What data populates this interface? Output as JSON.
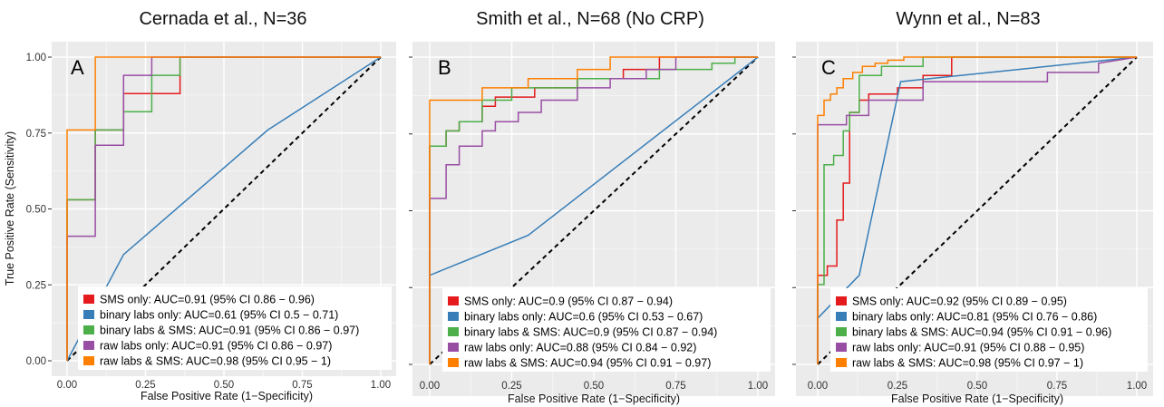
{
  "figure": {
    "y_axis_label": "True Positive Rate (Sensitivity)"
  },
  "chart_data": [
    {
      "type": "line",
      "title": "Cernada et al., N=36",
      "panel_label": "A",
      "xlabel": "False Positive Rate (1−Specificity)",
      "ylabel": "True Positive Rate (Sensitivity)",
      "xlim": [
        0,
        1
      ],
      "ylim": [
        0,
        1
      ],
      "x_ticks": [
        "0.00",
        "0.25",
        "0.50",
        "0.75",
        "1.00"
      ],
      "y_ticks": [
        "0.00",
        "0.25",
        "0.50",
        "0.75",
        "1.00"
      ],
      "grid": true,
      "legend_position": "bottom-right",
      "reference_line": [
        [
          0,
          0
        ],
        [
          1,
          1
        ]
      ],
      "series": [
        {
          "name": "SMS only: AUC=0.91 (95% CI 0.86 − 0.96)",
          "color": "#e41a1c",
          "x": [
            0,
            0,
            0.09,
            0.09,
            0.18,
            0.18,
            0.27,
            0.27,
            0.36,
            0.36,
            1
          ],
          "y": [
            0,
            0.53,
            0.53,
            0.76,
            0.76,
            0.88,
            0.88,
            0.88,
            0.88,
            1,
            1
          ]
        },
        {
          "name": "binary labs only: AUC=0.61 (95% CI 0.5 − 0.71)",
          "color": "#377eb8",
          "x": [
            0,
            0.18,
            0.64,
            1
          ],
          "y": [
            0,
            0.35,
            0.76,
            1
          ]
        },
        {
          "name": "binary labs & SMS: AUC=0.91 (95% CI 0.86 − 0.97)",
          "color": "#4daf4a",
          "x": [
            0,
            0,
            0.09,
            0.09,
            0.18,
            0.18,
            0.27,
            0.27,
            0.36,
            0.36,
            1
          ],
          "y": [
            0,
            0.53,
            0.53,
            0.76,
            0.76,
            0.82,
            0.82,
            0.94,
            0.94,
            1,
            1
          ]
        },
        {
          "name": "raw labs only: AUC=0.91 (95% CI 0.86 − 0.97)",
          "color": "#984ea3",
          "x": [
            0,
            0,
            0.09,
            0.09,
            0.18,
            0.18,
            0.27,
            0.27,
            1
          ],
          "y": [
            0,
            0.41,
            0.41,
            0.71,
            0.71,
            0.94,
            0.94,
            1,
            1
          ]
        },
        {
          "name": "raw labs & SMS: AUC=0.98 (95% CI 0.95 − 1)",
          "color": "#ff7f00",
          "x": [
            0,
            0,
            0.09,
            0.09,
            1
          ],
          "y": [
            0,
            0.76,
            0.76,
            1,
            1
          ]
        }
      ]
    },
    {
      "type": "line",
      "title": "Smith et al., N=68 (No CRP)",
      "panel_label": "B",
      "xlabel": "False Positive Rate (1−Specificity)",
      "ylabel": "",
      "xlim": [
        0,
        1
      ],
      "ylim": [
        0,
        1
      ],
      "x_ticks": [
        "0.00",
        "0.25",
        "0.50",
        "0.75",
        "1.00"
      ],
      "y_ticks": [],
      "grid": true,
      "legend_position": "bottom-right",
      "reference_line": [
        [
          0,
          0
        ],
        [
          1,
          1
        ]
      ],
      "series": [
        {
          "name": "SMS only: AUC=0.9 (95% CI 0.87 − 0.94)",
          "color": "#e41a1c",
          "x": [
            0,
            0,
            0.05,
            0.05,
            0.09,
            0.09,
            0.16,
            0.16,
            0.2,
            0.2,
            0.32,
            0.32,
            0.45,
            0.45,
            0.59,
            0.59,
            0.7,
            0.7,
            1
          ],
          "y": [
            0,
            0.71,
            0.71,
            0.76,
            0.76,
            0.79,
            0.79,
            0.84,
            0.84,
            0.87,
            0.87,
            0.9,
            0.9,
            0.93,
            0.93,
            0.96,
            0.96,
            1,
            1
          ]
        },
        {
          "name": "binary labs only: AUC=0.6 (95% CI 0.53 − 0.67)",
          "color": "#377eb8",
          "x": [
            0,
            0,
            0.3,
            1
          ],
          "y": [
            0,
            0.29,
            0.42,
            1
          ]
        },
        {
          "name": "binary labs & SMS: AUC=0.9 (95% CI 0.87 − 0.94)",
          "color": "#4daf4a",
          "x": [
            0,
            0,
            0.05,
            0.05,
            0.09,
            0.09,
            0.16,
            0.16,
            0.25,
            0.25,
            0.45,
            0.45,
            0.7,
            0.7,
            0.86,
            0.86,
            0.93,
            0.93,
            1
          ],
          "y": [
            0,
            0.71,
            0.71,
            0.76,
            0.76,
            0.79,
            0.79,
            0.86,
            0.86,
            0.9,
            0.9,
            0.93,
            0.93,
            0.96,
            0.96,
            0.98,
            0.98,
            1,
            1
          ]
        },
        {
          "name": "raw labs only: AUC=0.88 (95% CI 0.84 − 0.92)",
          "color": "#984ea3",
          "x": [
            0,
            0,
            0.05,
            0.05,
            0.09,
            0.09,
            0.16,
            0.16,
            0.2,
            0.2,
            0.27,
            0.27,
            0.34,
            0.34,
            0.45,
            0.45,
            0.55,
            0.55,
            0.66,
            0.66,
            0.75,
            0.75,
            1
          ],
          "y": [
            0,
            0.54,
            0.54,
            0.65,
            0.65,
            0.71,
            0.71,
            0.76,
            0.76,
            0.79,
            0.79,
            0.82,
            0.82,
            0.86,
            0.86,
            0.9,
            0.9,
            0.93,
            0.93,
            0.96,
            0.96,
            1,
            1
          ]
        },
        {
          "name": "raw labs & SMS: AUC=0.94 (95% CI 0.91 − 0.97)",
          "color": "#ff7f00",
          "x": [
            0,
            0,
            0.16,
            0.16,
            0.3,
            0.3,
            0.45,
            0.45,
            0.55,
            0.55,
            1
          ],
          "y": [
            0,
            0.86,
            0.86,
            0.9,
            0.9,
            0.93,
            0.93,
            0.96,
            0.96,
            1,
            1
          ]
        }
      ]
    },
    {
      "type": "line",
      "title": "Wynn et al., N=83",
      "panel_label": "C",
      "xlabel": "False Positive Rate (1−Specificity)",
      "ylabel": "",
      "xlim": [
        0,
        1
      ],
      "ylim": [
        0,
        1
      ],
      "x_ticks": [
        "0.00",
        "0.25",
        "0.50",
        "0.75",
        "1.00"
      ],
      "y_ticks": [],
      "grid": true,
      "legend_position": "bottom-right",
      "reference_line": [
        [
          0,
          0
        ],
        [
          1,
          1
        ]
      ],
      "series": [
        {
          "name": "SMS only: AUC=0.92 (95% CI 0.89 − 0.95)",
          "color": "#e41a1c",
          "x": [
            0,
            0,
            0.03,
            0.03,
            0.06,
            0.06,
            0.08,
            0.08,
            0.1,
            0.1,
            0.13,
            0.13,
            0.16,
            0.16,
            0.25,
            0.25,
            0.33,
            0.33,
            0.42,
            0.42,
            1
          ],
          "y": [
            0,
            0.29,
            0.29,
            0.32,
            0.32,
            0.47,
            0.47,
            0.59,
            0.59,
            0.82,
            0.82,
            0.86,
            0.86,
            0.88,
            0.88,
            0.9,
            0.9,
            0.94,
            0.94,
            1,
            1
          ]
        },
        {
          "name": "binary labs only: AUC=0.81 (95% CI 0.76 − 0.86)",
          "color": "#377eb8",
          "x": [
            0,
            0,
            0.13,
            0.26,
            1
          ],
          "y": [
            0,
            0.15,
            0.29,
            0.92,
            1
          ]
        },
        {
          "name": "binary labs & SMS: AUC=0.94 (95% CI 0.91 − 0.96)",
          "color": "#4daf4a",
          "x": [
            0,
            0,
            0.02,
            0.02,
            0.05,
            0.05,
            0.08,
            0.08,
            0.1,
            0.1,
            0.13,
            0.13,
            0.2,
            0.2,
            0.33,
            0.33,
            1
          ],
          "y": [
            0,
            0.26,
            0.26,
            0.65,
            0.65,
            0.68,
            0.68,
            0.76,
            0.76,
            0.82,
            0.82,
            0.94,
            0.94,
            0.97,
            0.97,
            1,
            1
          ]
        },
        {
          "name": "raw labs only: AUC=0.91 (95% CI 0.88 − 0.95)",
          "color": "#984ea3",
          "x": [
            0,
            0,
            0.09,
            0.09,
            0.16,
            0.16,
            0.33,
            0.33,
            0.72,
            0.72,
            0.88,
            0.88,
            1
          ],
          "y": [
            0,
            0.78,
            0.78,
            0.81,
            0.81,
            0.86,
            0.86,
            0.92,
            0.92,
            0.95,
            0.95,
            0.98,
            1
          ]
        },
        {
          "name": "raw labs & SMS: AUC=0.98 (95% CI 0.97 − 1)",
          "color": "#ff7f00",
          "x": [
            0,
            0,
            0.02,
            0.02,
            0.04,
            0.04,
            0.06,
            0.06,
            0.08,
            0.08,
            0.11,
            0.11,
            0.14,
            0.14,
            0.18,
            0.18,
            0.22,
            0.22,
            0.27,
            0.27,
            1
          ],
          "y": [
            0,
            0.81,
            0.81,
            0.86,
            0.86,
            0.88,
            0.88,
            0.9,
            0.9,
            0.93,
            0.93,
            0.95,
            0.95,
            0.97,
            0.97,
            0.98,
            0.98,
            0.99,
            0.99,
            1,
            1
          ]
        }
      ]
    }
  ]
}
